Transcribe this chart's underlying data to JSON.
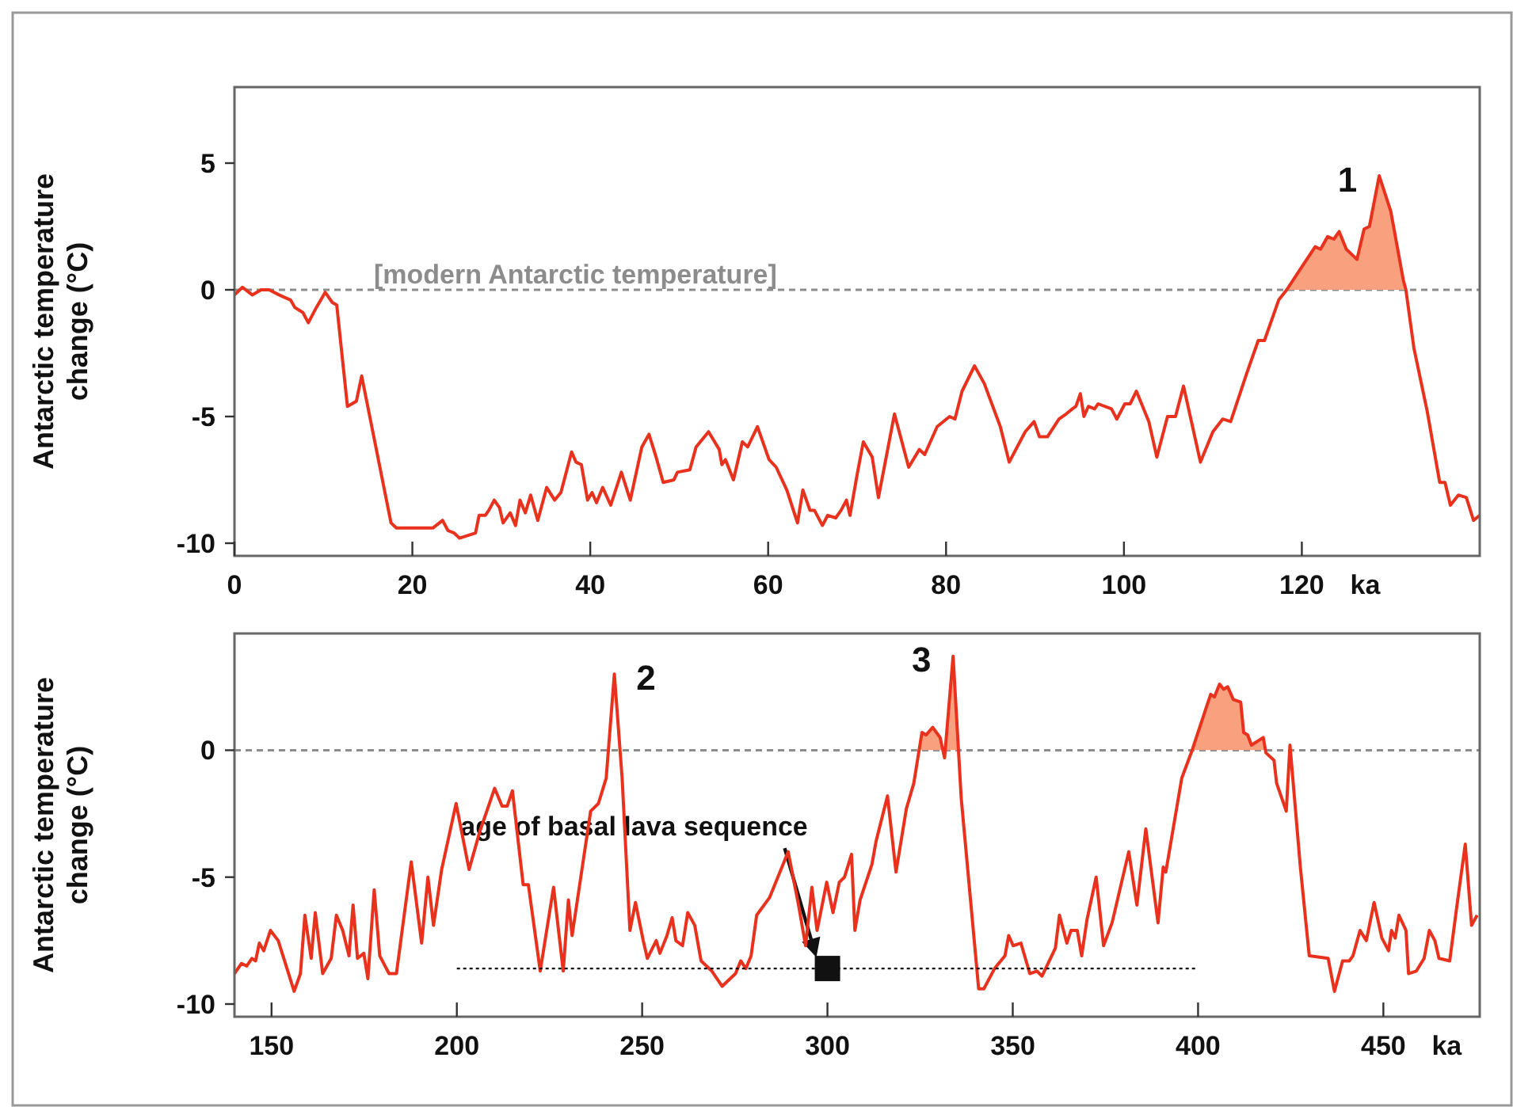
{
  "chart_data": [
    {
      "type": "line",
      "ylabel": "Antarctic temperature change (°C)",
      "xlabel": "ka",
      "xlim": [
        0,
        140
      ],
      "xticks": [
        0,
        20,
        40,
        60,
        80,
        100,
        120
      ],
      "ylim": [
        -10.5,
        8
      ],
      "yticks": [
        -10,
        -5,
        0,
        5
      ],
      "ref_lines": [
        {
          "axis": "y",
          "value": 0,
          "label": "[modern Antarctic temperature]",
          "color": "#8c8c8c",
          "line_style": "dashed"
        }
      ],
      "annotations": [
        {
          "text": "1",
          "x": 128.7,
          "y": 4.5
        }
      ],
      "series": [
        {
          "color": "#e8321e",
          "x": [
            0,
            0.9,
            2,
            3,
            3.9,
            5,
            6.3,
            6.8,
            7.7,
            8.3,
            9.2,
            10.2,
            11,
            11.5,
            12.7,
            13.7,
            14.3,
            17.6,
            18.2,
            20,
            21.1,
            22.3,
            23.4,
            24,
            24.7,
            25.3,
            27.1,
            27.5,
            28.2,
            28.6,
            29.2,
            29.8,
            30.2,
            31,
            31.6,
            32.1,
            32.7,
            33.3,
            34.1,
            35.1,
            36,
            36.7,
            37.9,
            38.4,
            39,
            39.7,
            40.2,
            40.7,
            41.4,
            42.3,
            43.5,
            44.5,
            45.8,
            46.6,
            47.4,
            48.2,
            49.4,
            49.8,
            51.2,
            51.9,
            53.3,
            54.5,
            54.8,
            55.2,
            56.1,
            57.1,
            57.7,
            58.8,
            60.1,
            60.9,
            62.1,
            63.3,
            63.9,
            64.7,
            65.2,
            66.1,
            66.7,
            67.6,
            68.2,
            68.8,
            69.2,
            70,
            70.7,
            71.7,
            72.4,
            74.2,
            75.8,
            77,
            77.6,
            79,
            80.4,
            81,
            81.8,
            83.2,
            84.3,
            86.1,
            87.1,
            88.9,
            89.9,
            90.5,
            91.4,
            92.7,
            93.5,
            94.2,
            94.6,
            95.1,
            95.5,
            96,
            96.7,
            97.1,
            98.6,
            99.2,
            100.1,
            100.7,
            101.4,
            102.8,
            103.7,
            104.9,
            105.8,
            106.7,
            108.6,
            110,
            111.1,
            112,
            113.8,
            115.1,
            115.8,
            117.4,
            118.3,
            119.8,
            121.5,
            122.1,
            122.9,
            123.6,
            124.2,
            125,
            126.2,
            127,
            127.6,
            128.7,
            130,
            131.4,
            131.7,
            132.6,
            134.1,
            135.5,
            136.1,
            136.7,
            137.6,
            138.5,
            139.3,
            140
          ],
          "values": [
            -0.2,
            0.1,
            -0.2,
            0,
            0,
            -0.2,
            -0.4,
            -0.7,
            -0.9,
            -1.3,
            -0.7,
            -0.1,
            -0.5,
            -0.6,
            -4.6,
            -4.4,
            -3.4,
            -9.2,
            -9.4,
            -9.4,
            -9.4,
            -9.4,
            -9.1,
            -9.5,
            -9.6,
            -9.8,
            -9.6,
            -8.9,
            -8.9,
            -8.7,
            -8.3,
            -8.6,
            -9.2,
            -8.8,
            -9.3,
            -8.3,
            -8.8,
            -8.1,
            -9.1,
            -7.8,
            -8.3,
            -8,
            -6.4,
            -6.8,
            -6.9,
            -8.3,
            -8,
            -8.4,
            -7.8,
            -8.5,
            -7.2,
            -8.3,
            -6.2,
            -5.7,
            -6.6,
            -7.6,
            -7.5,
            -7.2,
            -7.1,
            -6.2,
            -5.6,
            -6.3,
            -6.9,
            -6.7,
            -7.5,
            -6,
            -6.2,
            -5.4,
            -6.7,
            -7,
            -7.9,
            -9.2,
            -7.9,
            -8.7,
            -8.7,
            -9.3,
            -8.9,
            -9,
            -8.7,
            -8.3,
            -8.9,
            -7.3,
            -6,
            -6.6,
            -8.2,
            -4.9,
            -7,
            -6.3,
            -6.5,
            -5.4,
            -5,
            -5.1,
            -4,
            -3,
            -3.7,
            -5.4,
            -6.8,
            -5.6,
            -5.2,
            -5.8,
            -5.8,
            -5.1,
            -4.9,
            -4.7,
            -4.6,
            -4.1,
            -5,
            -4.6,
            -4.7,
            -4.5,
            -4.7,
            -5.1,
            -4.5,
            -4.5,
            -4,
            -5.2,
            -6.6,
            -5,
            -5,
            -3.8,
            -6.8,
            -5.6,
            -5.1,
            -5.2,
            -3.3,
            -2,
            -2,
            -0.4,
            0,
            0.8,
            1.7,
            1.6,
            2.1,
            2,
            2.3,
            1.6,
            1.2,
            2.4,
            2.5,
            4.5,
            3.1,
            0.4,
            0,
            -2.3,
            -4.8,
            -7.6,
            -7.6,
            -8.5,
            -8.1,
            -8.2,
            -9.1,
            -8.9
          ]
        },
        {
          "type": "area",
          "color": "#f9a07f",
          "x": [
            118.3,
            119.8,
            121.5,
            122.1,
            122.9,
            123.6,
            124.2,
            125,
            126.2,
            127,
            127.6,
            128.7,
            130,
            131.4,
            131.7
          ],
          "values": [
            0,
            0.8,
            1.7,
            1.6,
            2.1,
            2,
            2.3,
            1.6,
            1.2,
            2.4,
            2.5,
            4.5,
            3.1,
            0.4,
            0
          ]
        }
      ]
    },
    {
      "type": "line",
      "ylabel": "Antarctic temperature change (°C)",
      "xlabel": "ka",
      "xlim": [
        140,
        476
      ],
      "xticks": [
        150,
        200,
        250,
        300,
        350,
        400,
        450
      ],
      "ylim": [
        -10.5,
        4.6
      ],
      "yticks": [
        -10,
        -5,
        0
      ],
      "ref_lines": [
        {
          "axis": "y",
          "value": 0,
          "color": "#8c8c8c",
          "line_style": "dashed"
        }
      ],
      "annotations": [
        {
          "text": "2",
          "x": 242.5,
          "y": 3
        },
        {
          "text": "3",
          "x": 333.9,
          "y": 3.7
        },
        "age of basal lava sequence"
      ],
      "series": [
        {
          "color": "#e8321e",
          "x": [
            140,
            141.9,
            143.3,
            144.7,
            145.7,
            146.7,
            147.9,
            149.7,
            151.8,
            156.1,
            157.8,
            159,
            160.7,
            161.8,
            163.8,
            166.1,
            167.5,
            169.2,
            170.9,
            172,
            173.2,
            174.9,
            176,
            177.7,
            179.2,
            181.7,
            183.7,
            187.7,
            190.5,
            192.2,
            193.7,
            195.9,
            199.8,
            203.3,
            206.2,
            210.2,
            212.2,
            213.6,
            215,
            217.9,
            219.3,
            222.5,
            226.1,
            228.7,
            230.1,
            231.1,
            236.1,
            238.2,
            240.3,
            242.5,
            244.6,
            246.7,
            248.2,
            250.3,
            251.4,
            253.8,
            254.8,
            256.7,
            258.1,
            259.1,
            260.9,
            262.3,
            264.2,
            265.9,
            268.8,
            271.6,
            275.2,
            276.6,
            278,
            279.4,
            280.9,
            284.4,
            289.4,
            292.2,
            294.1,
            295.8,
            297.2,
            299.8,
            301.5,
            303.2,
            304.6,
            306.5,
            307.4,
            308.8,
            312,
            313.1,
            316.2,
            318.5,
            321.3,
            323.3,
            325.5,
            326.6,
            328.4,
            329.4,
            330.4,
            331.6,
            333.9,
            336.1,
            340.8,
            342.2,
            345.1,
            347.9,
            348.9,
            350.1,
            352.2,
            354.6,
            356.5,
            357.9,
            361.5,
            362.6,
            364.6,
            365.7,
            367.4,
            368.6,
            370,
            372.5,
            374.5,
            376.8,
            381.3,
            383.5,
            385.9,
            389.2,
            390.6,
            391.3,
            395.6,
            398.4,
            403.4,
            404.4,
            405.8,
            406.9,
            408,
            409.5,
            411.5,
            412.3,
            413.4,
            414.4,
            417.6,
            418.3,
            420.5,
            421.2,
            423.8,
            424.8,
            427.6,
            430,
            435.1,
            436.8,
            439,
            440.8,
            441.8,
            443.7,
            445.4,
            447.5,
            449.6,
            451.4,
            452.2,
            453.2,
            454.2,
            456.1,
            456.8,
            458.9,
            461,
            462.4,
            463.9,
            465,
            467.9,
            469.6,
            472.1,
            473.8,
            475.3
          ],
          "values": [
            -8.8,
            -8.4,
            -8.5,
            -8.2,
            -8.3,
            -7.6,
            -7.9,
            -7.1,
            -7.5,
            -9.5,
            -8.8,
            -6.5,
            -8.2,
            -6.4,
            -8.8,
            -8.2,
            -6.5,
            -7.1,
            -8.1,
            -6.1,
            -8.2,
            -8,
            -9,
            -5.5,
            -8.1,
            -8.8,
            -8.8,
            -4.4,
            -7.6,
            -5,
            -6.9,
            -4.7,
            -2.1,
            -4.7,
            -3.2,
            -1.5,
            -2.2,
            -2.2,
            -1.6,
            -5.3,
            -5.3,
            -8.7,
            -5.4,
            -8.7,
            -5.9,
            -7.3,
            -2.4,
            -2.1,
            -1.1,
            3,
            -1.1,
            -7.1,
            -6,
            -7.5,
            -8.2,
            -7.5,
            -8,
            -7.3,
            -6.6,
            -7.5,
            -7.7,
            -6.4,
            -6.9,
            -8.3,
            -8.7,
            -9.3,
            -8.8,
            -8.3,
            -8.6,
            -8.1,
            -6.5,
            -5.8,
            -4,
            -6.1,
            -7.7,
            -5.4,
            -7.1,
            -5.2,
            -6.4,
            -5.2,
            -5,
            -4.1,
            -7.1,
            -5.9,
            -4.5,
            -3.6,
            -1.8,
            -4.8,
            -2.3,
            -1.3,
            0.7,
            0.6,
            0.9,
            0.7,
            0.5,
            -0.3,
            3.7,
            -1.9,
            -9.4,
            -9.4,
            -8.6,
            -8.1,
            -7.3,
            -7.7,
            -7.6,
            -8.8,
            -8.7,
            -8.9,
            -7.8,
            -6.5,
            -7.6,
            -7.1,
            -7.1,
            -8.1,
            -6.7,
            -5,
            -7.7,
            -6.8,
            -4,
            -6.1,
            -3.1,
            -6.8,
            -4.6,
            -4.8,
            -1.1,
            0,
            2.2,
            2.1,
            2.6,
            2.4,
            2.5,
            2,
            1.9,
            0.7,
            0.6,
            0.2,
            0.5,
            -0.1,
            -0.4,
            -1.3,
            -2.4,
            0.2,
            -4.6,
            -8.1,
            -8.2,
            -9.5,
            -8.3,
            -8.3,
            -8.1,
            -7.1,
            -7.5,
            -6,
            -7.4,
            -7.9,
            -7.1,
            -7.4,
            -6.5,
            -7.1,
            -8.8,
            -8.7,
            -8.2,
            -7.1,
            -7.5,
            -8.2,
            -8.3,
            -6.4,
            -3.7,
            -6.9,
            -6.5
          ]
        },
        {
          "type": "area",
          "color": "#f9a07f",
          "x": [
            323.3,
            325.5,
            326.6,
            328.4,
            329.4,
            330.4,
            331.6,
            333.9,
            336.1,
            null,
            398.4,
            403.4,
            404.4,
            405.8,
            406.9,
            408,
            409.5,
            411.5,
            412.3,
            413.4,
            414.4,
            417.6,
            418.3
          ],
          "values": [
            -1.3,
            0.7,
            0.6,
            0.9,
            0.7,
            0.5,
            -0.3,
            3.7,
            -1.9,
            null,
            0,
            2.2,
            2.1,
            2.6,
            2.4,
            2.5,
            2,
            1.9,
            0.7,
            0.6,
            0.2,
            0.5,
            -0.1
          ]
        },
        {
          "type": "scatter",
          "color": "#111111",
          "marker": "square",
          "x": [
            300
          ],
          "values": [
            -8.6
          ],
          "xerrors": [
            100
          ]
        }
      ]
    }
  ]
}
